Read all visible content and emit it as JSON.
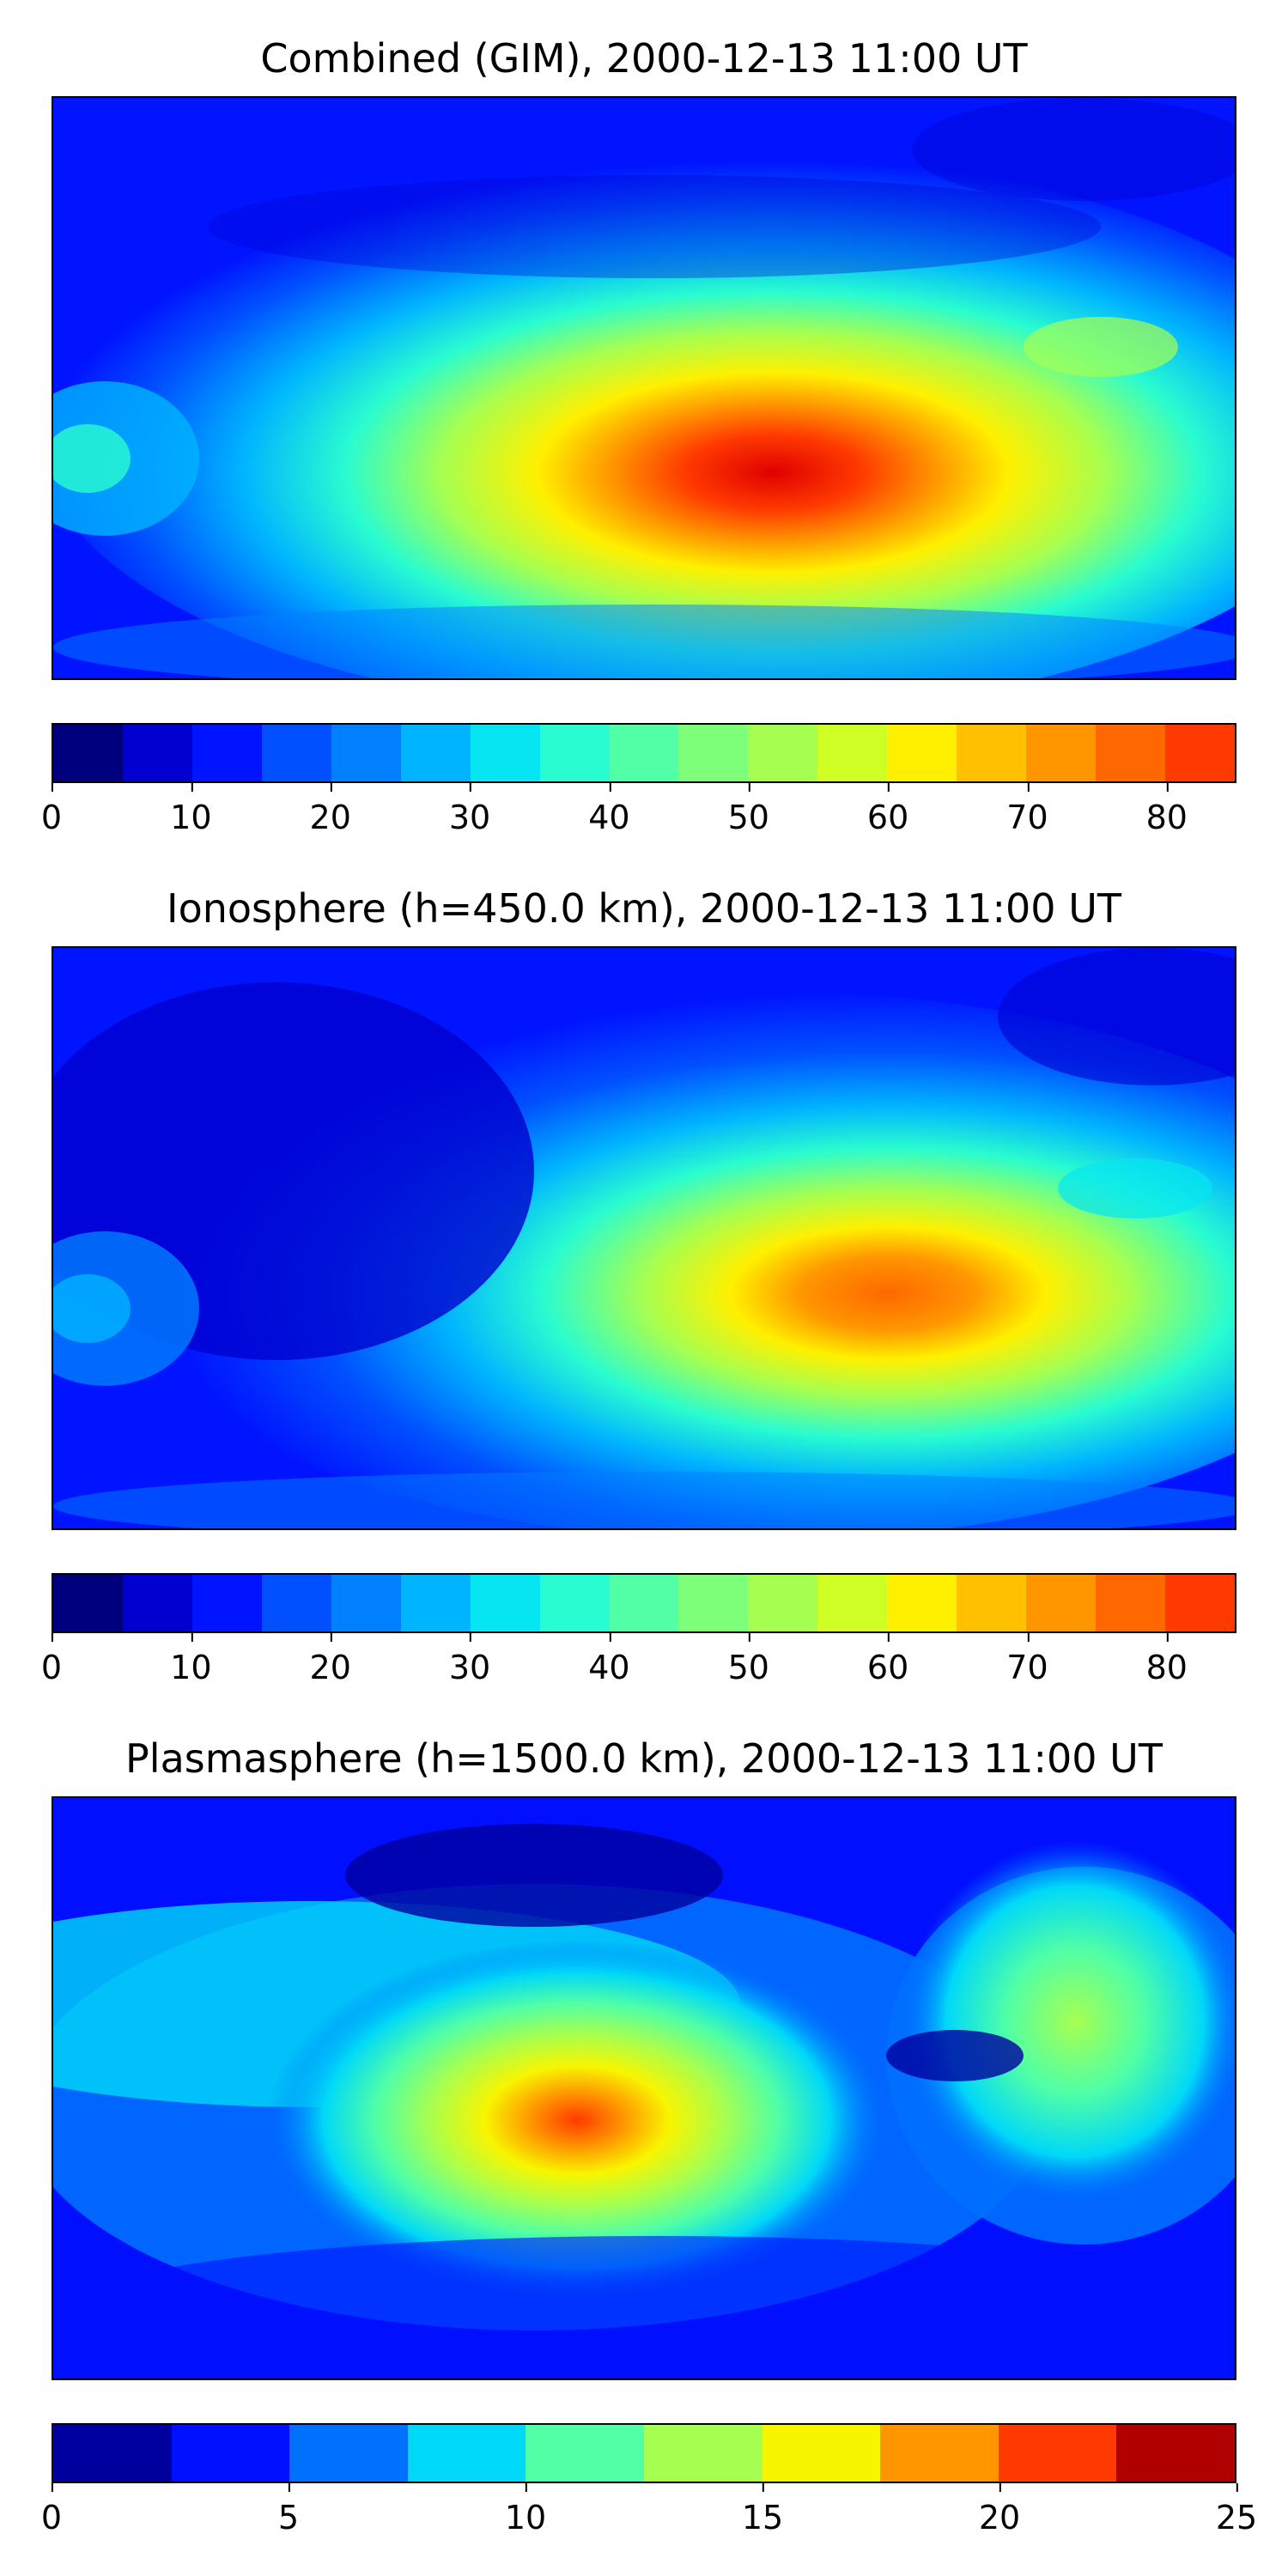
{
  "panels": [
    {
      "title": "Combined (GIM), 2000-12-13 11:00 UT",
      "colorbar": {
        "min": 0,
        "max": 85,
        "step": 5,
        "ticks": [
          "0",
          "10",
          "20",
          "30",
          "40",
          "50",
          "60",
          "70",
          "80"
        ],
        "tick_values": [
          0,
          10,
          20,
          30,
          40,
          50,
          60,
          70,
          80
        ],
        "colors": [
          "#00007f",
          "#0000d0",
          "#0014ff",
          "#0050ff",
          "#0080ff",
          "#00b4ff",
          "#05e6f2",
          "#29fcd0",
          "#50ffa6",
          "#7dff7a",
          "#a6ff50",
          "#d0ff26",
          "#fff000",
          "#ffc000",
          "#ff9600",
          "#ff6800",
          "#ff3a00",
          "#e00000",
          "#9a0000"
        ]
      }
    },
    {
      "title": "Ionosphere  (h=450.0 km), 2000-12-13 11:00 UT",
      "colorbar": {
        "min": 0,
        "max": 85,
        "step": 5,
        "ticks": [
          "0",
          "10",
          "20",
          "30",
          "40",
          "50",
          "60",
          "70",
          "80"
        ],
        "tick_values": [
          0,
          10,
          20,
          30,
          40,
          50,
          60,
          70,
          80
        ],
        "colors": [
          "#00007f",
          "#0000d0",
          "#0014ff",
          "#0050ff",
          "#0080ff",
          "#00b4ff",
          "#05e6f2",
          "#29fcd0",
          "#50ffa6",
          "#7dff7a",
          "#a6ff50",
          "#d0ff26",
          "#fff000",
          "#ffc000",
          "#ff9600",
          "#ff6800",
          "#ff3a00",
          "#e00000",
          "#9a0000"
        ]
      }
    },
    {
      "title": "Plasmasphere (h=1500.0 km), 2000-12-13 11:00 UT",
      "colorbar": {
        "min": 0,
        "max": 25,
        "step": 2.5,
        "ticks": [
          "0",
          "5",
          "10",
          "15",
          "20",
          "25"
        ],
        "tick_values": [
          0,
          5,
          10,
          15,
          20,
          25
        ],
        "colors": [
          "#00009f",
          "#0010ff",
          "#0070ff",
          "#00d8f8",
          "#50ffa6",
          "#a6ff50",
          "#f8f500",
          "#ff9600",
          "#ff3a00",
          "#b00000"
        ]
      }
    }
  ]
}
